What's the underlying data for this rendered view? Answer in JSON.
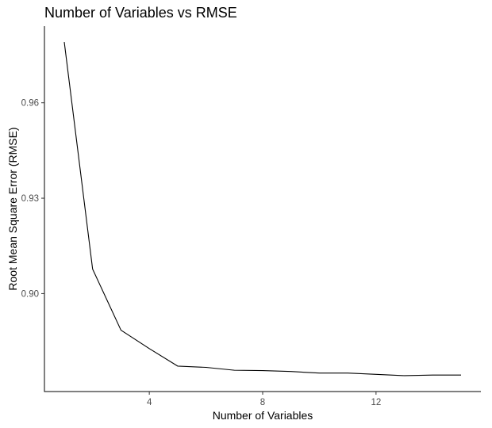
{
  "chart_data": {
    "type": "line",
    "title": "Number of Variables vs RMSE",
    "xlabel": "Number of Variables",
    "ylabel": "Root Mean Square Error (RMSE)",
    "x": [
      1,
      2,
      3,
      4,
      5,
      6,
      7,
      8,
      9,
      10,
      11,
      12,
      13,
      14,
      15
    ],
    "series": [
      {
        "values": [
          0.9791,
          0.9077,
          0.8885,
          0.8827,
          0.8772,
          0.8768,
          0.8759,
          0.8758,
          0.8755,
          0.875,
          0.875,
          0.8746,
          0.8742,
          0.8744,
          0.8744
        ]
      }
    ],
    "xticks": [
      4,
      8,
      12
    ],
    "xtick_labels": [
      "4",
      "8",
      "12"
    ],
    "yticks": [
      0.9,
      0.93,
      0.96
    ],
    "ytick_labels": [
      "0.90",
      "0.93",
      "0.96"
    ],
    "xlim": [
      0.3,
      15.7
    ],
    "ylim": [
      0.8692,
      0.9841
    ],
    "grid": false,
    "legend": "none",
    "line_color": "#000000",
    "axis_color": "#000000",
    "tick_label_color": "#4d4d4d"
  }
}
